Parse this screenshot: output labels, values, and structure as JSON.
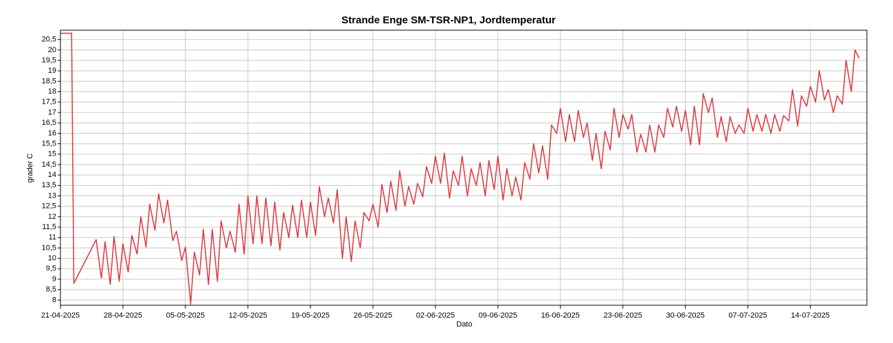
{
  "chart_data": {
    "type": "line",
    "title": "Strande Enge SM-TSR-NP1, Jordtemperatur",
    "x_label": "Dato",
    "y_label": "grader C",
    "color": "#e0353a",
    "grid": true,
    "ylim": [
      7.75,
      20.95
    ],
    "yticks": [
      8,
      {
        "value": 8.5,
        "label": "8,5"
      },
      9,
      {
        "value": 9.5,
        "label": "9,5"
      },
      10,
      {
        "value": 10.5,
        "label": "10,5"
      },
      11,
      {
        "value": 11.5,
        "label": "11,5"
      },
      12,
      {
        "value": 12.5,
        "label": "12,5"
      },
      13,
      {
        "value": 13.5,
        "label": "13,5"
      },
      14,
      {
        "value": 14.5,
        "label": "14,5"
      },
      15,
      {
        "value": 15.5,
        "label": "15,5"
      },
      16,
      {
        "value": 16.5,
        "label": "16,5"
      },
      17,
      {
        "value": 17.5,
        "label": "17,5"
      },
      18,
      {
        "value": 18.5,
        "label": "18,5"
      },
      19,
      {
        "value": 19.5,
        "label": "19,5"
      },
      20,
      {
        "value": 20.5,
        "label": "20,5"
      }
    ],
    "xlim": [
      "2025-04-21 00:00",
      "2025-07-20 08:00"
    ],
    "xticks": [
      {
        "value": "2025-04-21 00:00",
        "label": "21-04-2025"
      },
      {
        "value": "2025-04-28 00:00",
        "label": "28-04-2025"
      },
      {
        "value": "2025-05-05 00:00",
        "label": "05-05-2025"
      },
      {
        "value": "2025-05-12 00:00",
        "label": "12-05-2025"
      },
      {
        "value": "2025-05-19 00:00",
        "label": "19-05-2025"
      },
      {
        "value": "2025-05-26 00:00",
        "label": "26-05-2025"
      },
      {
        "value": "2025-06-02 00:00",
        "label": "02-06-2025"
      },
      {
        "value": "2025-06-09 00:00",
        "label": "09-06-2025"
      },
      {
        "value": "2025-06-16 00:00",
        "label": "16-06-2025"
      },
      {
        "value": "2025-06-23 00:00",
        "label": "23-06-2025"
      },
      {
        "value": "2025-06-30 00:00",
        "label": "30-06-2025"
      },
      {
        "value": "2025-07-07 00:00",
        "label": "07-07-2025"
      },
      {
        "value": "2025-07-14 00:00",
        "label": "14-07-2025"
      }
    ],
    "x": [
      "2025-04-21 00:00",
      "2025-04-22 06:00",
      "2025-04-22 12:00",
      "2025-04-25 00:00",
      "2025-04-25 14:00",
      "2025-04-26 00:00",
      "2025-04-26 14:00",
      "2025-04-27 00:00",
      "2025-04-27 14:00",
      "2025-04-28 00:00",
      "2025-04-28 14:00",
      "2025-04-29 00:00",
      "2025-04-29 14:00",
      "2025-04-30 00:00",
      "2025-04-30 14:00",
      "2025-05-01 00:00",
      "2025-05-01 14:00",
      "2025-05-02 00:00",
      "2025-05-02 14:00",
      "2025-05-03 00:00",
      "2025-05-03 14:00",
      "2025-05-04 00:00",
      "2025-05-04 14:00",
      "2025-05-05 00:00",
      "2025-05-05 14:00",
      "2025-05-06 00:00",
      "2025-05-06 14:00",
      "2025-05-07 00:00",
      "2025-05-07 14:00",
      "2025-05-08 00:00",
      "2025-05-08 14:00",
      "2025-05-09 00:00",
      "2025-05-09 14:00",
      "2025-05-10 00:00",
      "2025-05-10 14:00",
      "2025-05-11 00:00",
      "2025-05-11 14:00",
      "2025-05-12 00:00",
      "2025-05-12 14:00",
      "2025-05-13 00:00",
      "2025-05-13 14:00",
      "2025-05-14 00:00",
      "2025-05-14 14:00",
      "2025-05-15 00:00",
      "2025-05-15 14:00",
      "2025-05-16 00:00",
      "2025-05-16 14:00",
      "2025-05-17 00:00",
      "2025-05-17 14:00",
      "2025-05-18 00:00",
      "2025-05-18 14:00",
      "2025-05-19 00:00",
      "2025-05-19 14:00",
      "2025-05-20 00:00",
      "2025-05-20 14:00",
      "2025-05-21 00:00",
      "2025-05-21 14:00",
      "2025-05-22 00:00",
      "2025-05-22 14:00",
      "2025-05-23 00:00",
      "2025-05-23 14:00",
      "2025-05-24 00:00",
      "2025-05-24 14:00",
      "2025-05-25 00:00",
      "2025-05-25 14:00",
      "2025-05-26 00:00",
      "2025-05-26 14:00",
      "2025-05-27 00:00",
      "2025-05-27 14:00",
      "2025-05-28 00:00",
      "2025-05-28 14:00",
      "2025-05-29 00:00",
      "2025-05-29 14:00",
      "2025-05-30 00:00",
      "2025-05-30 14:00",
      "2025-05-31 00:00",
      "2025-05-31 14:00",
      "2025-06-01 00:00",
      "2025-06-01 14:00",
      "2025-06-02 00:00",
      "2025-06-02 14:00",
      "2025-06-03 00:00",
      "2025-06-03 14:00",
      "2025-06-04 00:00",
      "2025-06-04 14:00",
      "2025-06-05 00:00",
      "2025-06-05 14:00",
      "2025-06-06 00:00",
      "2025-06-06 14:00",
      "2025-06-07 00:00",
      "2025-06-07 14:00",
      "2025-06-08 00:00",
      "2025-06-08 14:00",
      "2025-06-09 00:00",
      "2025-06-09 14:00",
      "2025-06-10 00:00",
      "2025-06-10 14:00",
      "2025-06-11 00:00",
      "2025-06-11 14:00",
      "2025-06-12 00:00",
      "2025-06-12 14:00",
      "2025-06-13 00:00",
      "2025-06-13 14:00",
      "2025-06-14 00:00",
      "2025-06-14 14:00",
      "2025-06-15 00:00",
      "2025-06-15 14:00",
      "2025-06-16 00:00",
      "2025-06-16 14:00",
      "2025-06-17 00:00",
      "2025-06-17 14:00",
      "2025-06-18 00:00",
      "2025-06-18 14:00",
      "2025-06-19 00:00",
      "2025-06-19 14:00",
      "2025-06-20 00:00",
      "2025-06-20 14:00",
      "2025-06-21 00:00",
      "2025-06-21 14:00",
      "2025-06-22 00:00",
      "2025-06-22 14:00",
      "2025-06-23 00:00",
      "2025-06-23 14:00",
      "2025-06-24 00:00",
      "2025-06-24 14:00",
      "2025-06-25 00:00",
      "2025-06-25 14:00",
      "2025-06-26 00:00",
      "2025-06-26 14:00",
      "2025-06-27 00:00",
      "2025-06-27 14:00",
      "2025-06-28 00:00",
      "2025-06-28 14:00",
      "2025-06-29 00:00",
      "2025-06-29 14:00",
      "2025-06-30 00:00",
      "2025-06-30 14:00",
      "2025-07-01 00:00",
      "2025-07-01 14:00",
      "2025-07-02 00:00",
      "2025-07-02 14:00",
      "2025-07-03 00:00",
      "2025-07-03 14:00",
      "2025-07-04 00:00",
      "2025-07-04 14:00",
      "2025-07-05 00:00",
      "2025-07-05 14:00",
      "2025-07-06 00:00",
      "2025-07-06 14:00",
      "2025-07-07 00:00",
      "2025-07-07 14:00",
      "2025-07-08 00:00",
      "2025-07-08 14:00",
      "2025-07-09 00:00",
      "2025-07-09 14:00",
      "2025-07-10 00:00",
      "2025-07-10 14:00",
      "2025-07-11 00:00",
      "2025-07-11 14:00",
      "2025-07-12 00:00",
      "2025-07-12 14:00",
      "2025-07-13 00:00",
      "2025-07-13 14:00",
      "2025-07-14 00:00",
      "2025-07-14 14:00",
      "2025-07-15 00:00",
      "2025-07-15 14:00",
      "2025-07-16 00:00",
      "2025-07-16 14:00",
      "2025-07-17 00:00",
      "2025-07-17 14:00",
      "2025-07-18 00:00",
      "2025-07-18 14:00",
      "2025-07-19 00:00",
      "2025-07-19 11:00"
    ],
    "values": [
      20.8,
      20.8,
      8.8,
      10.9,
      9.05,
      10.8,
      8.75,
      11.05,
      8.9,
      10.7,
      9.35,
      11.1,
      10.2,
      12.0,
      10.55,
      12.6,
      11.35,
      13.1,
      11.7,
      12.8,
      10.85,
      11.3,
      9.9,
      10.55,
      7.8,
      10.3,
      9.2,
      11.4,
      8.75,
      11.4,
      8.9,
      11.8,
      10.5,
      11.3,
      10.3,
      12.6,
      10.2,
      13.0,
      10.7,
      13.0,
      10.7,
      12.9,
      10.6,
      12.7,
      10.4,
      12.2,
      11.0,
      12.55,
      11.0,
      12.8,
      11.0,
      12.7,
      11.1,
      13.45,
      12.0,
      12.9,
      11.7,
      13.3,
      10.0,
      12.0,
      9.85,
      11.8,
      10.5,
      12.2,
      11.8,
      12.6,
      11.5,
      13.55,
      12.2,
      13.7,
      12.3,
      14.2,
      12.5,
      13.45,
      12.6,
      13.6,
      12.95,
      14.4,
      13.6,
      14.9,
      13.6,
      15.05,
      12.9,
      14.2,
      13.5,
      14.9,
      13.0,
      14.3,
      13.5,
      14.6,
      13.0,
      14.7,
      13.3,
      14.9,
      12.8,
      14.3,
      13.0,
      13.9,
      12.8,
      14.6,
      13.8,
      15.5,
      14.1,
      15.4,
      13.8,
      16.4,
      16.0,
      17.2,
      15.6,
      16.9,
      15.6,
      17.1,
      15.8,
      16.5,
      14.7,
      16.0,
      14.3,
      16.1,
      15.2,
      17.2,
      15.8,
      16.9,
      16.2,
      16.9,
      15.1,
      15.95,
      15.1,
      16.4,
      15.1,
      16.4,
      15.8,
      17.2,
      16.3,
      17.3,
      16.1,
      17.1,
      15.45,
      17.3,
      15.45,
      17.9,
      17.0,
      17.7,
      15.8,
      16.8,
      15.6,
      16.8,
      16.0,
      16.4,
      16.0,
      17.2,
      16.1,
      16.9,
      16.1,
      16.9,
      16.0,
      16.9,
      16.1,
      16.85,
      16.6,
      18.1,
      16.35,
      17.8,
      17.3,
      18.25,
      17.5,
      19.0,
      17.6,
      18.1,
      17.0,
      17.8,
      17.4,
      19.5,
      18.0,
      20.0,
      19.6
    ]
  }
}
